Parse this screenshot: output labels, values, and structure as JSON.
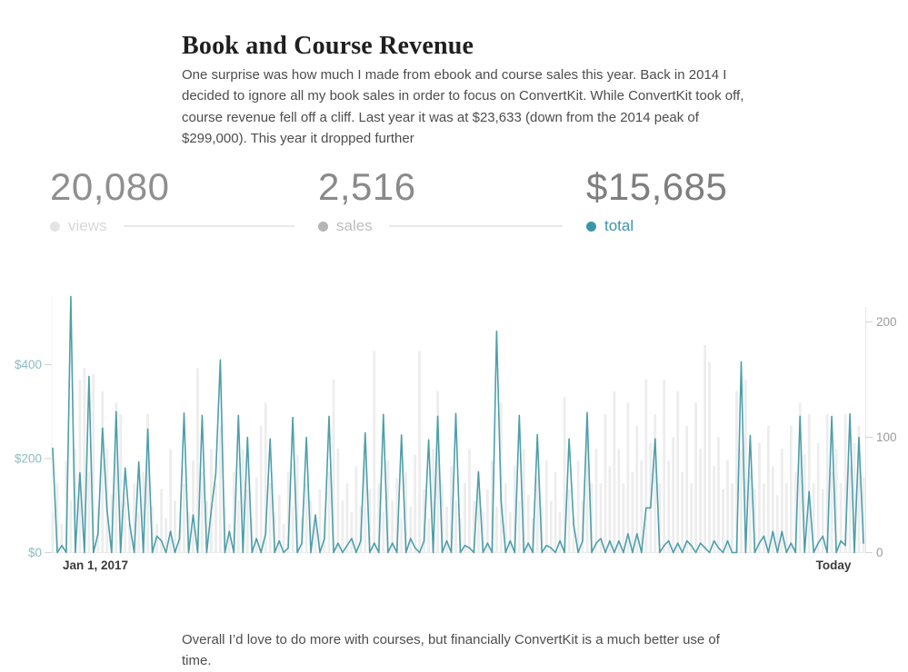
{
  "page": {
    "title": "Book and Course Revenue",
    "intro": "One surprise was how much I made from ebook and course sales this year. Back in 2014 I decided to ignore all my book sales in order to focus on ConvertKit. While ConvertKit took off, course revenue fell off a cliff. Last year it was at $23,633 (down from the 2014 peak of $299,000). This year it dropped further",
    "outro": "Overall I’d love to do more with courses, but financially ConvertKit is a much better use of time."
  },
  "stats": [
    {
      "value": "20,080",
      "label": "views",
      "dot_color": "#e4e4e4",
      "label_color": "#d8d8d8",
      "value_color": "#8f8f8f",
      "has_line": true
    },
    {
      "value": "2,516",
      "label": "sales",
      "dot_color": "#b4b4b4",
      "label_color": "#bdbdbd",
      "value_color": "#8a8a8a",
      "has_line": true
    },
    {
      "value": "$15,685",
      "label": "total",
      "dot_color": "#3b96a9",
      "label_color": "#3b96a9",
      "value_color": "#7e7e7e",
      "has_line": false
    }
  ],
  "chart_data": {
    "type": "line",
    "title": "Daily book and course revenue (teal line, left $ axis) over daily views (gray bars, right axis)",
    "x_axis": {
      "start_label": "Jan 1, 2017",
      "end_label": "Today",
      "label_color": "#3b3b3b"
    },
    "left_axis": {
      "tick_values": [
        0,
        200,
        400
      ],
      "tick_labels": [
        "$0",
        "$200",
        "$400"
      ],
      "color": "#8bbcc4",
      "max": 580,
      "unit": "USD"
    },
    "right_axis": {
      "tick_values": [
        0,
        100,
        200
      ],
      "tick_labels": [
        "0",
        "100",
        "200"
      ],
      "color": "#9b9b9b",
      "max": 245,
      "unit": "count"
    },
    "grid": false,
    "axis_line_color": "#e3e3e3",
    "baseline_color": "#ececec",
    "series": [
      {
        "name": "views",
        "type": "bar",
        "axis": "right",
        "color": "#ededed",
        "values": [
          35,
          60,
          25,
          80,
          45,
          90,
          150,
          160,
          70,
          155,
          40,
          140,
          90,
          50,
          130,
          120,
          45,
          25,
          60,
          35,
          70,
          120,
          40,
          25,
          55,
          30,
          90,
          45,
          20,
          60,
          35,
          80,
          160,
          70,
          45,
          90,
          60,
          110,
          40,
          25,
          70,
          45,
          90,
          55,
          30,
          65,
          110,
          130,
          60,
          35,
          50,
          25,
          70,
          40,
          85,
          30,
          60,
          45,
          25,
          55,
          30,
          70,
          150,
          90,
          45,
          60,
          35,
          75,
          40,
          90,
          55,
          175,
          60,
          35,
          80,
          45,
          65,
          30,
          70,
          40,
          85,
          175,
          55,
          30,
          90,
          140,
          60,
          40,
          75,
          45,
          30,
          60,
          90,
          45,
          70,
          35,
          55,
          80,
          40,
          130,
          60,
          35,
          75,
          45,
          90,
          50,
          30,
          65,
          40,
          80,
          45,
          70,
          35,
          135,
          55,
          30,
          80,
          45,
          100,
          60,
          90,
          60,
          120,
          75,
          140,
          90,
          60,
          130,
          70,
          110,
          80,
          150,
          95,
          120,
          60,
          150,
          80,
          100,
          140,
          70,
          110,
          60,
          130,
          90,
          180,
          165,
          75,
          100,
          55,
          80,
          60,
          140,
          90,
          150,
          70,
          55,
          95,
          60,
          110,
          75,
          50,
          90,
          60,
          110,
          70,
          130,
          85,
          120,
          60,
          95,
          55,
          120,
          70,
          90,
          60,
          120,
          75,
          95,
          110,
          65
        ]
      },
      {
        "name": "total revenue (USD)",
        "type": "line",
        "axis": "left",
        "color": "#4d9fab",
        "values": [
          222,
          0,
          15,
          0,
          545,
          0,
          170,
          0,
          375,
          0,
          40,
          265,
          90,
          0,
          300,
          0,
          180,
          60,
          0,
          193,
          0,
          263,
          0,
          35,
          25,
          0,
          45,
          0,
          30,
          297,
          0,
          80,
          0,
          292,
          0,
          90,
          168,
          410,
          0,
          45,
          0,
          292,
          0,
          245,
          0,
          30,
          0,
          40,
          242,
          0,
          25,
          0,
          10,
          288,
          0,
          20,
          245,
          0,
          80,
          0,
          30,
          290,
          0,
          20,
          0,
          15,
          30,
          0,
          25,
          255,
          0,
          20,
          0,
          294,
          0,
          20,
          0,
          250,
          0,
          30,
          10,
          0,
          25,
          240,
          0,
          290,
          0,
          25,
          0,
          296,
          0,
          15,
          10,
          0,
          172,
          0,
          20,
          0,
          471,
          110,
          0,
          25,
          0,
          292,
          0,
          20,
          0,
          251,
          0,
          15,
          10,
          0,
          25,
          0,
          242,
          60,
          0,
          25,
          298,
          0,
          20,
          30,
          0,
          25,
          0,
          25,
          0,
          40,
          0,
          40,
          0,
          95,
          95,
          242,
          0,
          15,
          25,
          0,
          20,
          0,
          25,
          15,
          0,
          20,
          10,
          0,
          25,
          10,
          0,
          25,
          0,
          0,
          406,
          0,
          249,
          0,
          20,
          35,
          0,
          45,
          0,
          45,
          0,
          20,
          0,
          290,
          0,
          130,
          0,
          20,
          35,
          0,
          290,
          0,
          25,
          15,
          295,
          0,
          245,
          20
        ]
      }
    ]
  }
}
